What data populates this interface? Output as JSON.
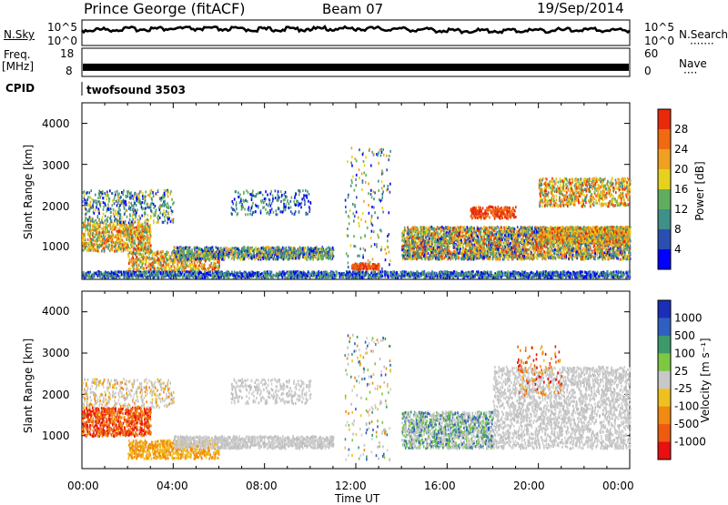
{
  "header": {
    "title": "Prince George (fitACF)",
    "beam": "Beam 07",
    "date": "19/Sep/2014"
  },
  "noise_panel": {
    "left_label": "N.Sky",
    "right_label": "N.Search",
    "yticks": [
      "10^5",
      "10^0"
    ],
    "right_legend": "·······"
  },
  "freq_panel": {
    "left_label_1": "Freq.",
    "left_label_2": "[MHz]",
    "yticks": [
      "18",
      "8"
    ],
    "right_label": "Nave",
    "right_yticks": [
      "60",
      "0"
    ],
    "right_legend": "····"
  },
  "cpid_panel": {
    "label": "CPID",
    "program": "twofsound 3503"
  },
  "power_panel": {
    "ylabel": "Slant Range [km]",
    "yticks": [
      "1000",
      "2000",
      "3000",
      "4000"
    ],
    "colorbar_title": "Power [dB]",
    "colorbar_ticks": [
      "4",
      "8",
      "12",
      "16",
      "20",
      "24",
      "28"
    ],
    "colorbar_colors": [
      "#0000ff",
      "#2a4fb0",
      "#3f8f8a",
      "#5fae5f",
      "#e6d21e",
      "#f0a020",
      "#f06a10",
      "#e82a0a"
    ]
  },
  "velocity_panel": {
    "ylabel": "Slant Range [km]",
    "yticks": [
      "1000",
      "2000",
      "3000",
      "4000"
    ],
    "colorbar_title": "Velocity [m s⁻¹]",
    "colorbar_ticks": [
      "1000",
      "500",
      "100",
      "25",
      "-25",
      "-100",
      "-500",
      "-1000"
    ],
    "colorbar_colors": [
      "#1a2eb8",
      "#2f5fc0",
      "#3c9a6a",
      "#7cc843",
      "#c8c8c8",
      "#f0c020",
      "#f08a10",
      "#ee5a10",
      "#e81010"
    ]
  },
  "x_axis": {
    "label": "Time UT",
    "ticks": [
      "00:00",
      "04:00",
      "08:00",
      "12:00",
      "16:00",
      "20:00",
      "00:00"
    ]
  },
  "chart_data": [
    {
      "type": "line",
      "panel": "noise",
      "series": [
        {
          "name": "N.Sky",
          "x": [
            0,
            2,
            4,
            6,
            8,
            10,
            12,
            14,
            16,
            18,
            20,
            22,
            24
          ],
          "y": [
            1000,
            1800,
            2500,
            2000,
            1500,
            2000,
            2500,
            1800,
            800,
            700,
            900,
            1200,
            1000
          ]
        }
      ],
      "ylim": [
        1,
        100000
      ],
      "yscale": "log"
    },
    {
      "type": "line",
      "panel": "frequency",
      "series": [
        {
          "name": "Freq.",
          "x": [
            0,
            24
          ],
          "y": [
            11,
            11
          ]
        }
      ],
      "ylim": [
        8,
        18
      ],
      "xlim": [
        0,
        24
      ]
    },
    {
      "type": "heatmap",
      "panel": "power",
      "xlabel": "Time UT",
      "ylabel": "Slant Range [km]",
      "xlim": [
        0,
        24
      ],
      "ylim": [
        200,
        4500
      ],
      "zlabel": "Power [dB]",
      "zlim": [
        0,
        30
      ]
    },
    {
      "type": "heatmap",
      "panel": "velocity",
      "xlabel": "Time UT",
      "ylabel": "Slant Range [km]",
      "xlim": [
        0,
        24
      ],
      "ylim": [
        200,
        4500
      ],
      "zlabel": "Velocity [m s⁻¹]",
      "zlim": [
        -1000,
        1000
      ]
    }
  ]
}
